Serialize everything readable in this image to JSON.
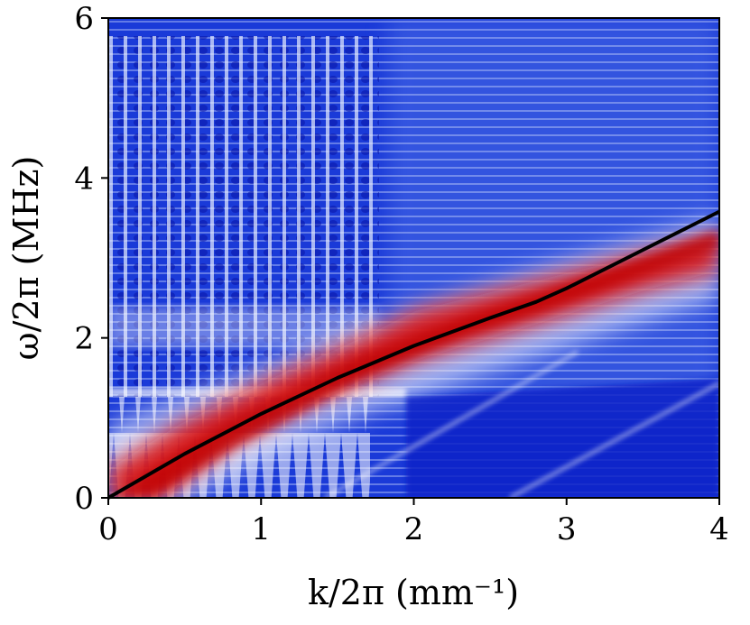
{
  "chart_data": {
    "type": "heatmap",
    "title": "",
    "xlabel": "k/2π (mm⁻¹)",
    "ylabel": "ω/2π (MHz)",
    "xlim": [
      0,
      4
    ],
    "ylim": [
      0,
      6
    ],
    "x_ticks": [
      "0",
      "1",
      "2",
      "3",
      "4"
    ],
    "y_ticks": [
      "0",
      "2",
      "4",
      "6"
    ],
    "colormap": [
      "#0a1fd0",
      "#ffffff",
      "#d80000"
    ],
    "grid": false,
    "series": [
      {
        "type": "line",
        "color": "#000000",
        "x": [
          0,
          0.5,
          1.0,
          1.5,
          2.0,
          2.5,
          2.8,
          3.0,
          3.5,
          4.0
        ],
        "y": [
          0,
          0.55,
          1.05,
          1.5,
          1.9,
          2.25,
          2.45,
          2.62,
          3.1,
          3.58
        ]
      }
    ]
  }
}
